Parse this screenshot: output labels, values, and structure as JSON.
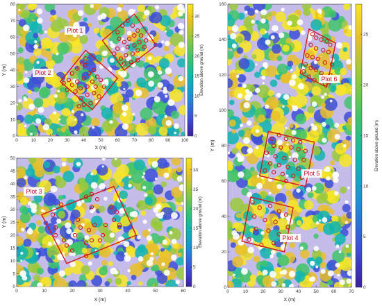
{
  "colors": {
    "plot_outline": "#d11a1a",
    "tree_marker": "#d11a1a",
    "colormap": [
      "#3b1f9e",
      "#3d4fd8",
      "#1e8fd6",
      "#12b5b0",
      "#3fc46a",
      "#9ac93a",
      "#e8c02a",
      "#f7e625"
    ]
  },
  "chart_data": [
    {
      "id": "panel-1-2",
      "type": "map",
      "xlabel": "X (m)",
      "ylabel": "Y (m)",
      "xlim": [
        0,
        100
      ],
      "ylim": [
        0,
        80
      ],
      "xticks": [
        "0",
        "10",
        "20",
        "30",
        "40",
        "50",
        "60",
        "70",
        "80",
        "90",
        "100"
      ],
      "yticks": [
        "0",
        "10",
        "20",
        "30",
        "40",
        "50",
        "60",
        "70",
        "80"
      ],
      "colorbar": {
        "label": "Elevation above ground (m)",
        "ticks": [
          "0",
          "5",
          "10",
          "15",
          "20",
          "25",
          "30"
        ],
        "range": [
          0,
          33
        ]
      },
      "plots": [
        {
          "name": "Plot 1",
          "corners": [
            [
              51,
              58
            ],
            [
              70,
              74
            ],
            [
              83,
              55
            ],
            [
              64,
              40
            ]
          ],
          "trees": [
            [
              60,
              63
            ],
            [
              63,
              67
            ],
            [
              66,
              70
            ],
            [
              69,
              67
            ],
            [
              72,
              64
            ],
            [
              61,
              59
            ],
            [
              64,
              57
            ],
            [
              67,
              59
            ],
            [
              70,
              61
            ],
            [
              74,
              61
            ],
            [
              66,
              54
            ],
            [
              70,
              55
            ],
            [
              73,
              57
            ],
            [
              77,
              58
            ],
            [
              65,
              49
            ],
            [
              69,
              50
            ],
            [
              72,
              52
            ],
            [
              76,
              54
            ],
            [
              64,
              44
            ],
            [
              68,
              45
            ],
            [
              60,
              53
            ],
            [
              58,
              50
            ],
            [
              72,
              46
            ],
            [
              62,
              47
            ]
          ]
        },
        {
          "name": "Plot 2",
          "corners": [
            [
              26,
              33
            ],
            [
              41,
              52
            ],
            [
              60,
              35
            ],
            [
              45,
              16
            ]
          ],
          "trees": [
            [
              28,
              32
            ],
            [
              31,
              34
            ],
            [
              33,
              38
            ],
            [
              36,
              41
            ],
            [
              39,
              44
            ],
            [
              41,
              47
            ],
            [
              33,
              31
            ],
            [
              36,
              33
            ],
            [
              40,
              35
            ],
            [
              43,
              38
            ],
            [
              46,
              40
            ],
            [
              48,
              36
            ],
            [
              30,
              28
            ],
            [
              35,
              27
            ],
            [
              38,
              29
            ],
            [
              42,
              30
            ],
            [
              45,
              33
            ],
            [
              50,
              34
            ],
            [
              52,
              30
            ],
            [
              38,
              23
            ],
            [
              42,
              25
            ],
            [
              46,
              26
            ],
            [
              49,
              24
            ],
            [
              40,
              19
            ],
            [
              44,
              20
            ],
            [
              37,
              18
            ],
            [
              41,
              43
            ],
            [
              47,
              30
            ]
          ]
        }
      ]
    },
    {
      "id": "panel-3",
      "type": "map",
      "xlabel": "X (m)",
      "ylabel": "Y (m)",
      "xlim": [
        0,
        60
      ],
      "ylim": [
        0,
        50
      ],
      "xticks": [
        "0",
        "10",
        "20",
        "30",
        "40",
        "50",
        "60"
      ],
      "yticks": [
        "0",
        "5",
        "10",
        "15",
        "20",
        "25",
        "30",
        "35",
        "40",
        "45",
        "50"
      ],
      "colorbar": {
        "label": "Elevation above ground (m)",
        "ticks": [
          "0",
          "5",
          "10",
          "15",
          "20",
          "25",
          "30"
        ],
        "range": [
          0,
          33
        ]
      },
      "plots": [
        {
          "name": "Plot 3",
          "corners": [
            [
              9,
              28
            ],
            [
              35,
              39
            ],
            [
              43,
              20
            ],
            [
              18,
              9
            ]
          ],
          "trees": [
            [
              13,
              28
            ],
            [
              14,
              23
            ],
            [
              14,
              20
            ],
            [
              17,
              18
            ],
            [
              21,
              20
            ],
            [
              23,
              23
            ],
            [
              20,
              14
            ],
            [
              18,
              16
            ],
            [
              25,
              17
            ],
            [
              27,
              18
            ],
            [
              30,
              18
            ],
            [
              31,
              20
            ],
            [
              26,
              22
            ],
            [
              28,
              24
            ],
            [
              32,
              24
            ],
            [
              35,
              26
            ],
            [
              37,
              24
            ],
            [
              36,
              29
            ],
            [
              34,
              31
            ],
            [
              29,
              34
            ],
            [
              27,
              36
            ],
            [
              25,
              35
            ],
            [
              27,
              31
            ],
            [
              16,
              32
            ],
            [
              22,
              26
            ],
            [
              25,
              12
            ]
          ]
        }
      ]
    },
    {
      "id": "panel-4-5-6",
      "type": "map",
      "xlabel": "X (m)",
      "ylabel": "Y (m)",
      "xlim": [
        0,
        70
      ],
      "ylim": [
        0,
        160
      ],
      "xticks": [
        "0",
        "10",
        "20",
        "30",
        "40",
        "50",
        "60",
        "70"
      ],
      "yticks": [
        "0",
        "20",
        "40",
        "60",
        "80",
        "100",
        "120",
        "140",
        "160"
      ],
      "colorbar": {
        "label": "Elevation above ground (m)",
        "ticks": [
          "0",
          "5",
          "10",
          "15",
          "20",
          "25"
        ],
        "range": [
          0,
          28
        ]
      },
      "plots": [
        {
          "name": "Plot 4",
          "corners": [
            [
              13,
              51
            ],
            [
              37,
              45
            ],
            [
              32,
              20
            ],
            [
              8,
              26
            ]
          ],
          "trees": [
            [
              14,
              48
            ],
            [
              18,
              45
            ],
            [
              24,
              46
            ],
            [
              29,
              43
            ],
            [
              33,
              41
            ],
            [
              15,
              40
            ],
            [
              21,
              38
            ],
            [
              27,
              37
            ],
            [
              16,
              33
            ],
            [
              23,
              32
            ],
            [
              29,
              30
            ],
            [
              12,
              27
            ],
            [
              19,
              24
            ],
            [
              31,
              28
            ],
            [
              26,
              25
            ],
            [
              34,
              34
            ]
          ]
        },
        {
          "name": "Plot 5",
          "corners": [
            [
              23,
              88
            ],
            [
              49,
              82
            ],
            [
              44,
              57
            ],
            [
              18,
              63
            ]
          ],
          "trees": [
            [
              25,
              84
            ],
            [
              29,
              86
            ],
            [
              33,
              84
            ],
            [
              37,
              83
            ],
            [
              41,
              82
            ],
            [
              26,
              80
            ],
            [
              30,
              79
            ],
            [
              36,
              79
            ],
            [
              40,
              78
            ],
            [
              44,
              77
            ],
            [
              22,
              76
            ],
            [
              27,
              74
            ],
            [
              32,
              73
            ],
            [
              38,
              72
            ],
            [
              43,
              72
            ],
            [
              24,
              70
            ],
            [
              29,
              69
            ],
            [
              34,
              68
            ],
            [
              40,
              67
            ],
            [
              21,
              66
            ],
            [
              26,
              65
            ],
            [
              31,
              64
            ],
            [
              37,
              63
            ],
            [
              42,
              62
            ],
            [
              33,
              60
            ]
          ]
        },
        {
          "name": "Plot 6",
          "corners": [
            [
              46,
              146
            ],
            [
              61,
              138
            ],
            [
              56,
              113
            ],
            [
              41,
              121
            ]
          ],
          "trees": [
            [
              48,
              143
            ],
            [
              50,
              141
            ],
            [
              53,
              140
            ],
            [
              56,
              139
            ],
            [
              58,
              137
            ],
            [
              47,
              137
            ],
            [
              50,
              135
            ],
            [
              54,
              134
            ],
            [
              57,
              133
            ],
            [
              45,
              131
            ],
            [
              48,
              130
            ],
            [
              51,
              129
            ],
            [
              55,
              127
            ],
            [
              59,
              126
            ],
            [
              44,
              126
            ],
            [
              47,
              124
            ],
            [
              50,
              123
            ],
            [
              53,
              121
            ],
            [
              56,
              118
            ],
            [
              58,
              120
            ],
            [
              43,
              122
            ],
            [
              46,
              119
            ],
            [
              49,
              117
            ],
            [
              55,
              115
            ],
            [
              57,
              116
            ]
          ]
        }
      ]
    }
  ],
  "labels": {
    "plot1": "Plot 1",
    "plot2": "Plot 2",
    "plot3": "Plot 3",
    "plot4": "Plot 4",
    "plot5": "Plot 5",
    "plot6": "Plot 6"
  }
}
